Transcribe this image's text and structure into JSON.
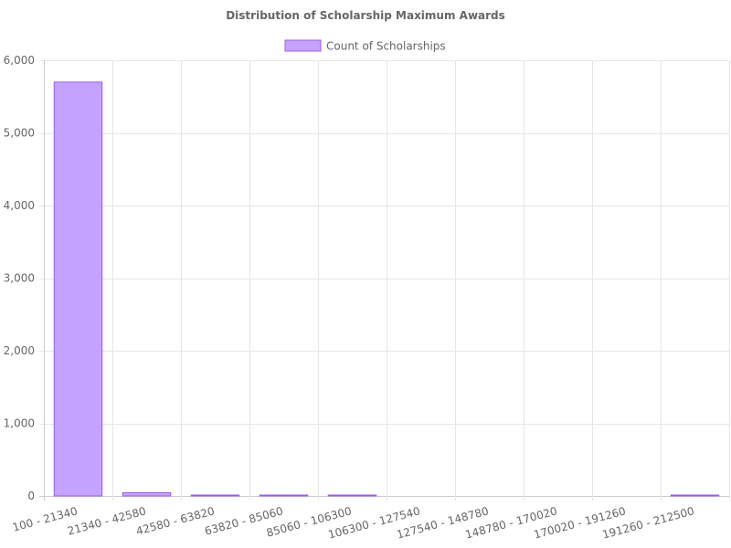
{
  "chart_data": {
    "type": "bar",
    "title": "Distribution of Scholarship Maximum Awards",
    "xlabel": "",
    "ylabel": "",
    "categories": [
      "100 - 21340",
      "21340 - 42580",
      "42580 - 63820",
      "63820 - 85060",
      "85060 - 106300",
      "106300 - 127540",
      "127540 - 148780",
      "148780 - 170020",
      "170020 - 191260",
      "191260 - 212500"
    ],
    "series": [
      {
        "name": "Count of Scholarships",
        "values": [
          5700,
          45,
          3,
          4,
          2,
          0,
          0,
          0,
          0,
          4
        ]
      }
    ],
    "ylim": [
      0,
      6000
    ],
    "yticks": [
      0,
      1000,
      2000,
      3000,
      4000,
      5000,
      6000
    ],
    "ytick_labels": [
      "0",
      "1,000",
      "2,000",
      "3,000",
      "4,000",
      "5,000",
      "6,000"
    ],
    "grid": true,
    "legend_position": "top-center",
    "colors": {
      "bar_fill": "#c4a3ff",
      "bar_stroke": "#9b5de5",
      "text": "#666666",
      "grid": "#e6e6e6"
    }
  }
}
